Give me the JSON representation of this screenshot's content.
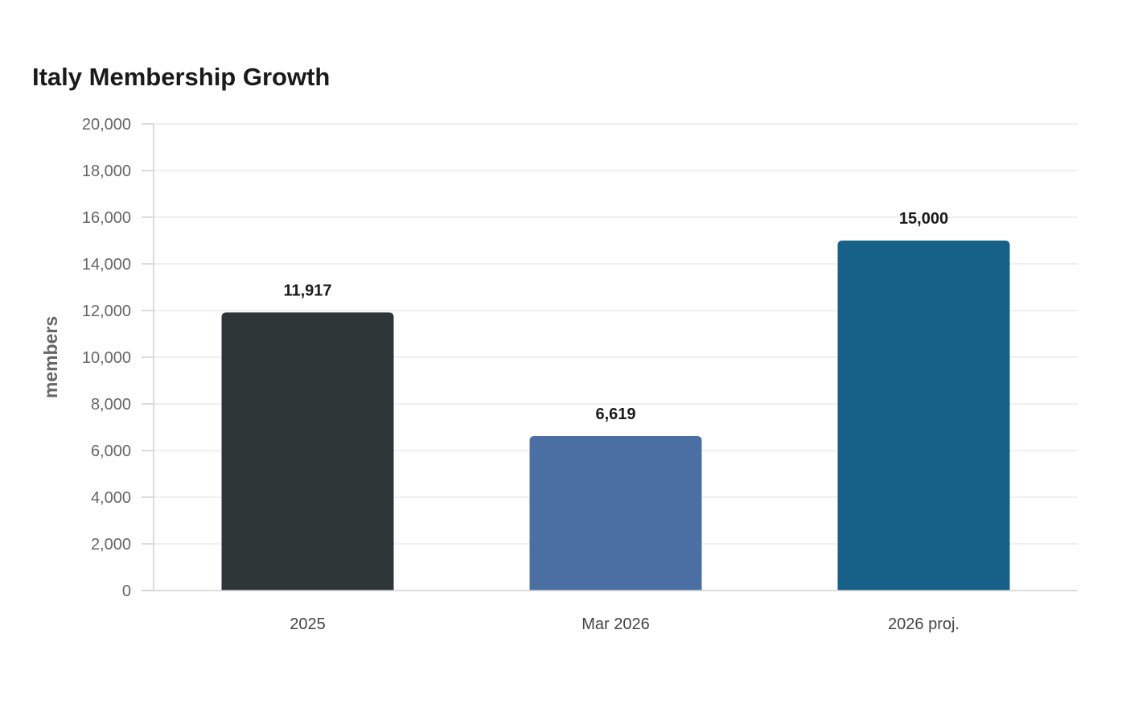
{
  "chart_data": {
    "type": "bar",
    "title": "Italy Membership Growth",
    "xlabel": "",
    "ylabel": "members",
    "categories": [
      "2025",
      "Mar 2026",
      "2026 proj."
    ],
    "values": [
      11917,
      6619,
      15000
    ],
    "data_labels": [
      "11,917",
      "6,619",
      "15,000"
    ],
    "colors": [
      "#2d3537",
      "#4b6fa3",
      "#176088"
    ],
    "ylim": [
      0,
      20000
    ],
    "yticks": [
      0,
      2000,
      4000,
      6000,
      8000,
      10000,
      12000,
      14000,
      16000,
      18000,
      20000
    ],
    "ytick_labels": [
      "0",
      "2,000",
      "4,000",
      "6,000",
      "8,000",
      "10,000",
      "12,000",
      "14,000",
      "16,000",
      "18,000",
      "20,000"
    ],
    "grid": true,
    "legend": "none"
  }
}
